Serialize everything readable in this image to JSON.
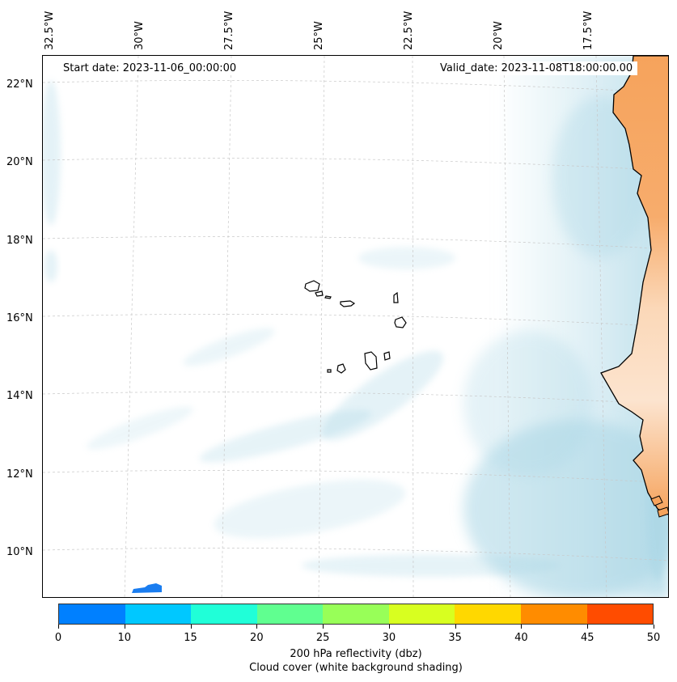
{
  "map": {
    "start_date": "Start date: 2023-11-06_00:00:00",
    "valid_date": "Valid_date: 2023-11-08T18:00:00.00",
    "lon_labels": [
      "32.5°W",
      "30°W",
      "27.5°W",
      "25°W",
      "22.5°W",
      "20°W",
      "17.5°W"
    ],
    "lat_labels": [
      "22°N",
      "20°N",
      "18°N",
      "16°N",
      "14°N",
      "12°N",
      "10°N"
    ],
    "colors": {
      "land": "#f6a35c",
      "land_light": "#fbd8b8",
      "cloud": "#a9d6e5",
      "coast": "#000000",
      "echo": "#1a7df0"
    }
  },
  "colorbar": {
    "colors": [
      "#0080ff",
      "#00c8ff",
      "#20ffd8",
      "#60ff90",
      "#98ff58",
      "#d8ff20",
      "#ffd800",
      "#ff8c00",
      "#ff4c00"
    ],
    "ticks": [
      "0",
      "10",
      "15",
      "20",
      "25",
      "30",
      "35",
      "40",
      "45",
      "50"
    ],
    "label_line1": "200 hPa reflectivity (dbz)",
    "label_line2": "Cloud cover (white background shading)"
  }
}
